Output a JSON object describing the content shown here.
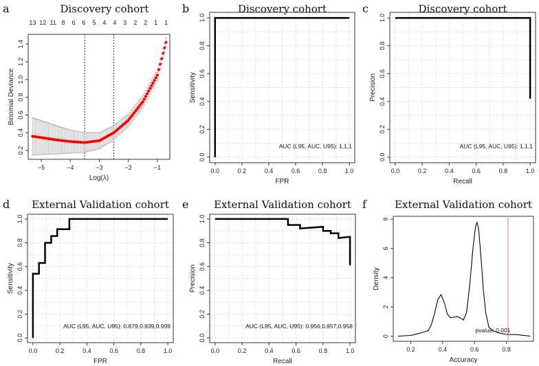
{
  "chart_data": [
    {
      "id": "a",
      "panel_label": "a",
      "type": "line",
      "title": "Discovery cohort",
      "xlabel": "Log(λ)",
      "ylabel": "Binomial Deviance",
      "xlim": [
        -5.45,
        -0.57
      ],
      "ylim": [
        0.1,
        1.51
      ],
      "xticks": [
        -5,
        -4,
        -3,
        -2,
        -1
      ],
      "yticks": [
        0.2,
        0.4,
        0.6,
        0.8,
        1.0,
        1.2,
        1.4
      ],
      "grid": false,
      "top_axis_labels": [
        "13",
        "12",
        "11",
        "8",
        "6",
        "6",
        "5",
        "4",
        "4",
        "3",
        "2",
        "2",
        "1",
        "1"
      ],
      "vlines": [
        -3.5,
        -2.5
      ],
      "series": [
        {
          "name": "Binomial Deviance (mean ± SE)",
          "color": "#ff0000",
          "x": [
            -5.3,
            -4.5,
            -4.0,
            -3.5,
            -3.0,
            -2.5,
            -2.0,
            -1.5,
            -1.0,
            -0.7
          ],
          "y": [
            0.36,
            0.32,
            0.3,
            0.29,
            0.31,
            0.4,
            0.54,
            0.75,
            1.05,
            1.42
          ],
          "err": [
            0.21,
            0.16,
            0.13,
            0.11,
            0.09,
            0.08,
            0.07,
            0.07,
            0.06,
            0.05
          ]
        }
      ]
    },
    {
      "id": "b",
      "panel_label": "b",
      "type": "line",
      "title": "Discovery cohort",
      "xlabel": "FPR",
      "ylabel": "Sensitivity",
      "xlim": [
        -0.04,
        1.04
      ],
      "ylim": [
        -0.04,
        1.04
      ],
      "xticks": [
        0,
        0.2,
        0.4,
        0.6,
        0.8,
        1.0
      ],
      "yticks": [
        0,
        0.2,
        0.4,
        0.6,
        0.8,
        1.0
      ],
      "grid": true,
      "annotation": "AUC (L95, AUC, U95): 1,1,1",
      "series": [
        {
          "name": "ROC",
          "color": "#000000",
          "x": [
            0,
            0,
            1
          ],
          "y": [
            0,
            1,
            1
          ]
        }
      ]
    },
    {
      "id": "c",
      "panel_label": "c",
      "type": "line",
      "title": "Discovery cohort",
      "xlabel": "Recall",
      "ylabel": "Precision",
      "xlim": [
        -0.04,
        1.04
      ],
      "ylim": [
        -0.04,
        1.04
      ],
      "xticks": [
        0,
        0.2,
        0.4,
        0.6,
        0.8,
        1.0
      ],
      "yticks": [
        0,
        0.2,
        0.4,
        0.6,
        0.8,
        1.0
      ],
      "grid": true,
      "annotation": "AUC (L95, AUC, U95): 1,1,1",
      "series": [
        {
          "name": "PR",
          "color": "#000000",
          "x": [
            0,
            1,
            1
          ],
          "y": [
            1,
            1,
            0.42
          ]
        }
      ]
    },
    {
      "id": "d",
      "panel_label": "d",
      "type": "line",
      "title": "External Validation cohort",
      "xlabel": "FPR",
      "ylabel": "Sensitivity",
      "xlim": [
        -0.04,
        1.04
      ],
      "ylim": [
        -0.04,
        1.04
      ],
      "xticks": [
        0,
        0.2,
        0.4,
        0.6,
        0.8,
        1.0
      ],
      "yticks": [
        0,
        0.2,
        0.4,
        0.6,
        0.8,
        1.0
      ],
      "grid": true,
      "annotation": "AUC (L95, AUC, U95): 0.879,0.939,0.999",
      "series": [
        {
          "name": "ROC",
          "color": "#000000",
          "x": [
            0,
            0,
            0.045,
            0.045,
            0.09,
            0.09,
            0.136,
            0.136,
            0.18,
            0.18,
            0.27,
            0.27,
            1
          ],
          "y": [
            0,
            0.54,
            0.54,
            0.63,
            0.63,
            0.8,
            0.8,
            0.857,
            0.857,
            0.914,
            0.914,
            1,
            1
          ]
        }
      ]
    },
    {
      "id": "e",
      "panel_label": "e",
      "type": "line",
      "title": "External Validation cohort",
      "xlabel": "Recall",
      "ylabel": "Precision",
      "xlim": [
        -0.04,
        1.04
      ],
      "ylim": [
        -0.04,
        1.04
      ],
      "xticks": [
        0,
        0.2,
        0.4,
        0.6,
        0.8,
        1.0
      ],
      "yticks": [
        0,
        0.2,
        0.4,
        0.6,
        0.8,
        1.0
      ],
      "grid": true,
      "annotation": "AUC (L95, AUC, U95): 0.956,0.957,0.958",
      "series": [
        {
          "name": "PR",
          "color": "#000000",
          "x": [
            0,
            0.54,
            0.54,
            0.63,
            0.63,
            0.8,
            0.8,
            0.857,
            0.857,
            0.914,
            0.914,
            1,
            1
          ],
          "y": [
            1,
            1,
            0.95,
            0.95,
            0.92,
            0.935,
            0.9,
            0.9,
            0.88,
            0.88,
            0.84,
            0.85,
            0.61
          ]
        }
      ]
    },
    {
      "id": "f",
      "panel_label": "f",
      "type": "line",
      "title": "External Validation cohort",
      "xlabel": "Accuracy",
      "ylabel": "Density",
      "xlim": [
        0.09,
        0.97
      ],
      "ylim": [
        -0.35,
        8.2
      ],
      "xticks": [
        0.2,
        0.4,
        0.6,
        0.8
      ],
      "yticks": [
        0,
        2,
        4,
        6,
        8
      ],
      "grid": false,
      "annotation": "pvalue: 0.001",
      "vline": {
        "x": 0.81,
        "color": "#f4a6b5"
      },
      "series": [
        {
          "name": "Density",
          "color": "#000000",
          "x": [
            0.12,
            0.2,
            0.25,
            0.28,
            0.31,
            0.33,
            0.35,
            0.37,
            0.39,
            0.41,
            0.43,
            0.45,
            0.47,
            0.49,
            0.51,
            0.53,
            0.55,
            0.57,
            0.59,
            0.605,
            0.615,
            0.625,
            0.64,
            0.655,
            0.67,
            0.69,
            0.72,
            0.76,
            0.8,
            0.87,
            0.95
          ],
          "y": [
            0,
            0.05,
            0.18,
            0.28,
            0.38,
            0.8,
            1.6,
            2.5,
            2.85,
            2.3,
            1.5,
            1.25,
            1.3,
            1.35,
            1.25,
            1.1,
            1.6,
            3.5,
            6.0,
            7.4,
            7.8,
            7.4,
            5.5,
            3.2,
            1.6,
            0.6,
            0.35,
            0.2,
            0.12,
            0.1,
            0
          ]
        }
      ]
    }
  ]
}
